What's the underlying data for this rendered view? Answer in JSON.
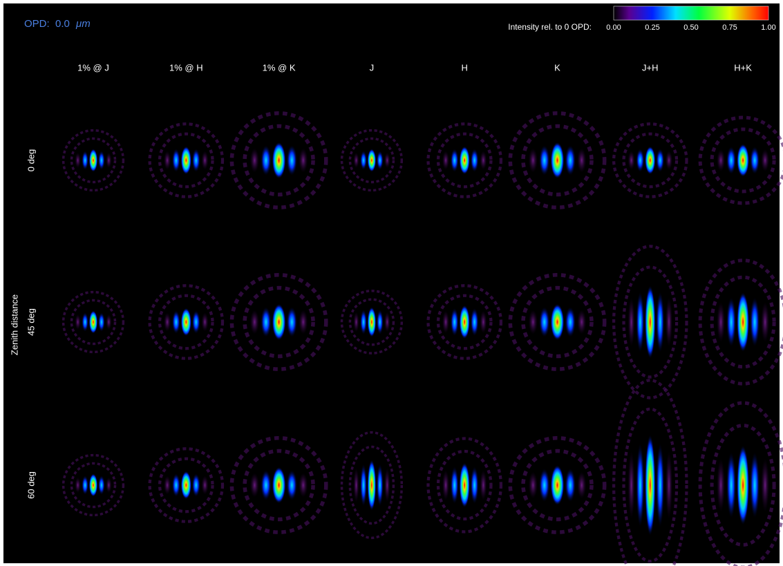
{
  "header": {
    "opd_label": "OPD:",
    "opd_value": "0.0",
    "opd_unit": "μm"
  },
  "colorbar": {
    "title": "Intensity rel. to 0 OPD:",
    "ticks": [
      "0.00",
      "0.25",
      "0.50",
      "0.75",
      "1.00"
    ]
  },
  "columns": [
    "1% @ J",
    "1% @ H",
    "1% @ K",
    "J",
    "H",
    "K",
    "J+H",
    "H+K"
  ],
  "rows": [
    "0 deg",
    "45 deg",
    "60 deg"
  ],
  "row_axis_label": "Zenith distance"
}
